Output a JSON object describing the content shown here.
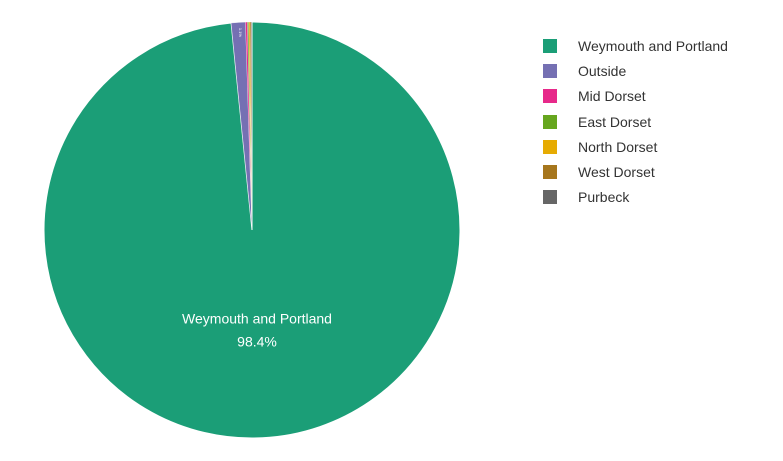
{
  "chart_data": {
    "type": "pie",
    "slices": [
      {
        "name": "Weymouth and Portland",
        "value": 98.4,
        "color": "#1b9e77"
      },
      {
        "name": "Outside",
        "value": 1.1,
        "color": "#7570b3"
      },
      {
        "name": "Mid Dorset",
        "value": 0.15,
        "color": "#e7298a"
      },
      {
        "name": "East Dorset",
        "value": 0.1,
        "color": "#66a61e"
      },
      {
        "name": "North Dorset",
        "value": 0.1,
        "color": "#e6ab02"
      },
      {
        "name": "West Dorset",
        "value": 0.1,
        "color": "#a6761d"
      },
      {
        "name": "Purbeck",
        "value": 0.05,
        "color": "#666666"
      }
    ],
    "slice_labels": [
      {
        "name": "Weymouth and Portland",
        "percent": "98.4%"
      },
      {
        "name": "Outside",
        "percent": "1.1%"
      }
    ],
    "legend_position": "top-right"
  }
}
